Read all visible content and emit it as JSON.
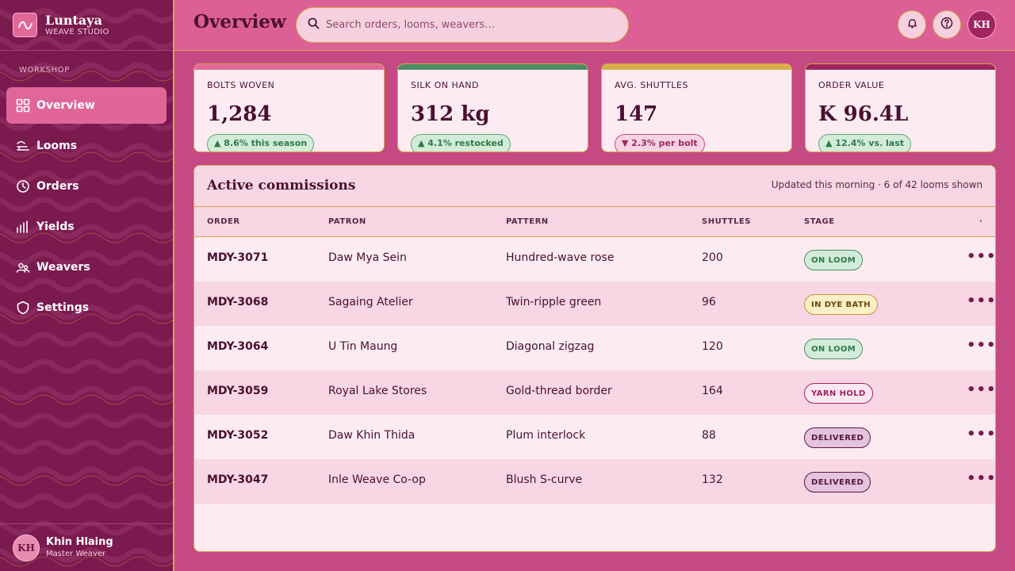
{
  "brand": {
    "name": "Luntaya",
    "subtitle": "WEAVE STUDIO"
  },
  "sidebar": {
    "section": "WORKSHOP",
    "items": [
      {
        "label": "Overview",
        "icon": "grid-icon",
        "active": true
      },
      {
        "label": "Looms",
        "icon": "loom-icon"
      },
      {
        "label": "Orders",
        "icon": "clock-icon"
      },
      {
        "label": "Yields",
        "icon": "bar-chart-icon"
      },
      {
        "label": "Weavers",
        "icon": "users-icon"
      },
      {
        "label": "Settings",
        "icon": "shield-icon"
      }
    ],
    "user": {
      "initials": "KH",
      "name": "Khin Hlaing",
      "role": "Master Weaver"
    }
  },
  "header": {
    "title": "Overview",
    "search_placeholder": "Search orders, looms, weavers…",
    "user_initials": "KH"
  },
  "kpis": [
    {
      "label": "BOLTS WOVEN",
      "value": "1,284",
      "delta": "▲ 8.6% this season",
      "trend": "up",
      "accent": "#e2689a"
    },
    {
      "label": "SILK ON HAND",
      "value": "312 kg",
      "delta": "▲ 4.1% restocked",
      "trend": "up",
      "accent": "#4e8c63"
    },
    {
      "label": "AVG. SHUTTLES",
      "value": "147",
      "delta": "▼ 2.3% per bolt",
      "trend": "down",
      "accent": "#d9ae4a"
    },
    {
      "label": "ORDER VALUE",
      "value": "K 96.4L",
      "delta": "▲ 12.4% vs. last",
      "trend": "up",
      "accent": "#a1245f"
    }
  ],
  "table": {
    "title": "Active commissions",
    "meta": "Updated this morning · 6 of 42 looms shown",
    "columns": [
      "ORDER",
      "PATRON",
      "PATTERN",
      "SHUTTLES",
      "STAGE",
      "·"
    ],
    "rows": [
      {
        "order": "MDY-3071",
        "patron": "Daw Mya Sein",
        "pattern": "Hundred-wave rose",
        "shuttles": "200",
        "stage": "ON LOOM",
        "stage_kind": "loom"
      },
      {
        "order": "MDY-3068",
        "patron": "Sagaing Atelier",
        "pattern": "Twin-ripple green",
        "shuttles": "96",
        "stage": "IN DYE BATH",
        "stage_kind": "dye"
      },
      {
        "order": "MDY-3064",
        "patron": "U Tin Maung",
        "pattern": "Diagonal zigzag",
        "shuttles": "120",
        "stage": "ON LOOM",
        "stage_kind": "loom"
      },
      {
        "order": "MDY-3059",
        "patron": "Royal Lake Stores",
        "pattern": "Gold-thread border",
        "shuttles": "164",
        "stage": "YARN HOLD",
        "stage_kind": "hold"
      },
      {
        "order": "MDY-3052",
        "patron": "Daw Khin Thida",
        "pattern": "Plum interlock",
        "shuttles": "88",
        "stage": "DELIVERED",
        "stage_kind": "deliv"
      },
      {
        "order": "MDY-3047",
        "patron": "Inle Weave Co-op",
        "pattern": "Blush S-curve",
        "shuttles": "132",
        "stage": "DELIVERED",
        "stage_kind": "deliv"
      }
    ],
    "row_action": "•••"
  }
}
